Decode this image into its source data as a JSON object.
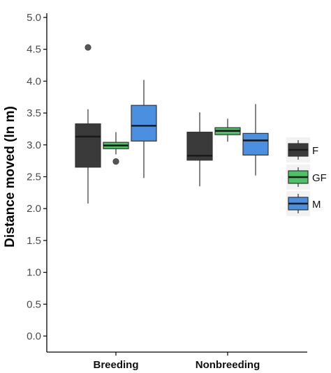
{
  "chart_data": {
    "type": "boxplot",
    "ylabel": "Distance moved (ln m)",
    "xlabel": "",
    "ylim": [
      0,
      5
    ],
    "yticks": [
      "0.0",
      "0.5",
      "1.0",
      "1.5",
      "2.0",
      "2.5",
      "3.0",
      "3.5",
      "4.0",
      "4.5",
      "5.0"
    ],
    "categories": [
      "Breeding",
      "Nonbreeding"
    ],
    "grid": false,
    "legend_position": "right",
    "series": [
      {
        "name": "F",
        "color": "#3a3a3a",
        "boxes": [
          {
            "category": "Breeding",
            "min": 2.08,
            "q1": 2.65,
            "median": 3.13,
            "q3": 3.33,
            "max": 3.56,
            "outliers": [
              4.53
            ]
          },
          {
            "category": "Nonbreeding",
            "min": 2.35,
            "q1": 2.76,
            "median": 2.83,
            "q3": 3.2,
            "max": 3.51,
            "outliers": []
          }
        ]
      },
      {
        "name": "GF",
        "color": "#4cc266",
        "boxes": [
          {
            "category": "Breeding",
            "min": 2.85,
            "q1": 2.94,
            "median": 2.99,
            "q3": 3.04,
            "max": 3.2,
            "outliers": [
              2.74
            ]
          },
          {
            "category": "Nonbreeding",
            "min": 3.05,
            "q1": 3.16,
            "median": 3.22,
            "q3": 3.27,
            "max": 3.41,
            "outliers": []
          }
        ]
      },
      {
        "name": "M",
        "color": "#4a8fe0",
        "boxes": [
          {
            "category": "Breeding",
            "min": 2.48,
            "q1": 3.06,
            "median": 3.3,
            "q3": 3.62,
            "max": 4.02,
            "outliers": []
          },
          {
            "category": "Nonbreeding",
            "min": 2.52,
            "q1": 2.84,
            "median": 3.07,
            "q3": 3.18,
            "max": 3.64,
            "outliers": []
          }
        ]
      }
    ]
  }
}
